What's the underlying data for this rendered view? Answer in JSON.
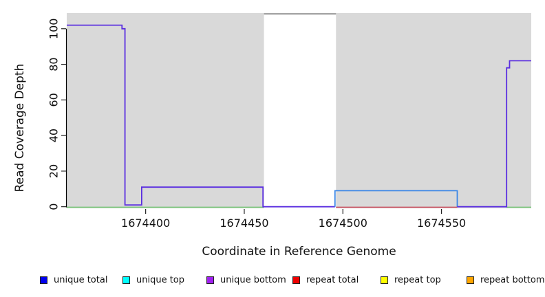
{
  "chart_data": {
    "type": "line",
    "subtype": "step-coverage",
    "title": "",
    "xlabel": "Coordinate in Reference Genome",
    "ylabel": "Read Coverage Depth",
    "xlim": [
      1674360,
      1674595.5
    ],
    "ylim": [
      -0.9,
      108.8
    ],
    "x_ticks": [
      1674400,
      1674450,
      1674500,
      1674550
    ],
    "y_ticks": [
      0,
      20,
      40,
      60,
      80,
      100
    ],
    "grid": false,
    "plot_bg": "#D9D9D9",
    "masked_region": {
      "x0": 1674460,
      "x1": 1674496.5,
      "color": "#FFFFFF",
      "top_border": "#777777"
    },
    "series": [
      {
        "id": "unique-coverage-left",
        "color": "#5B2FE0",
        "points": [
          [
            1674360,
            102
          ],
          [
            1674388,
            102
          ],
          [
            1674388,
            100
          ],
          [
            1674389.5,
            100
          ],
          [
            1674389.5,
            1
          ],
          [
            1674398,
            1
          ],
          [
            1674398,
            11
          ],
          [
            1674459.5,
            11
          ],
          [
            1674459.5,
            0
          ],
          [
            1674496,
            0
          ]
        ]
      },
      {
        "id": "unique-coverage-mid",
        "color": "#3B87E6",
        "points": [
          [
            1674496,
            0
          ],
          [
            1674496,
            9
          ],
          [
            1674558,
            9
          ],
          [
            1674558,
            0
          ]
        ]
      },
      {
        "id": "unique-coverage-right",
        "color": "#5B2FE0",
        "points": [
          [
            1674558,
            0
          ],
          [
            1674583,
            0
          ],
          [
            1674583,
            78
          ],
          [
            1674584.5,
            78
          ],
          [
            1674584.5,
            82
          ],
          [
            1674595.5,
            82
          ]
        ]
      }
    ],
    "baseline_segments": [
      {
        "color": "#77C577",
        "x0": 1674360,
        "x1": 1674460,
        "y": 0
      },
      {
        "color": "#C94F5F",
        "x0": 1674496.5,
        "x1": 1674558,
        "y": 0
      },
      {
        "color": "#77C577",
        "x0": 1674583,
        "x1": 1674595.5,
        "y": 0
      }
    ],
    "legend_position": "bottom",
    "legend": [
      {
        "label": "unique total",
        "color": "#0000EE"
      },
      {
        "label": "unique top",
        "color": "#00FFFF"
      },
      {
        "label": "unique bottom",
        "color": "#A020F0"
      },
      {
        "label": "repeat total",
        "color": "#EE0000"
      },
      {
        "label": "repeat top",
        "color": "#FFFF00"
      },
      {
        "label": "repeat bottom",
        "color": "#FFA500"
      }
    ]
  }
}
